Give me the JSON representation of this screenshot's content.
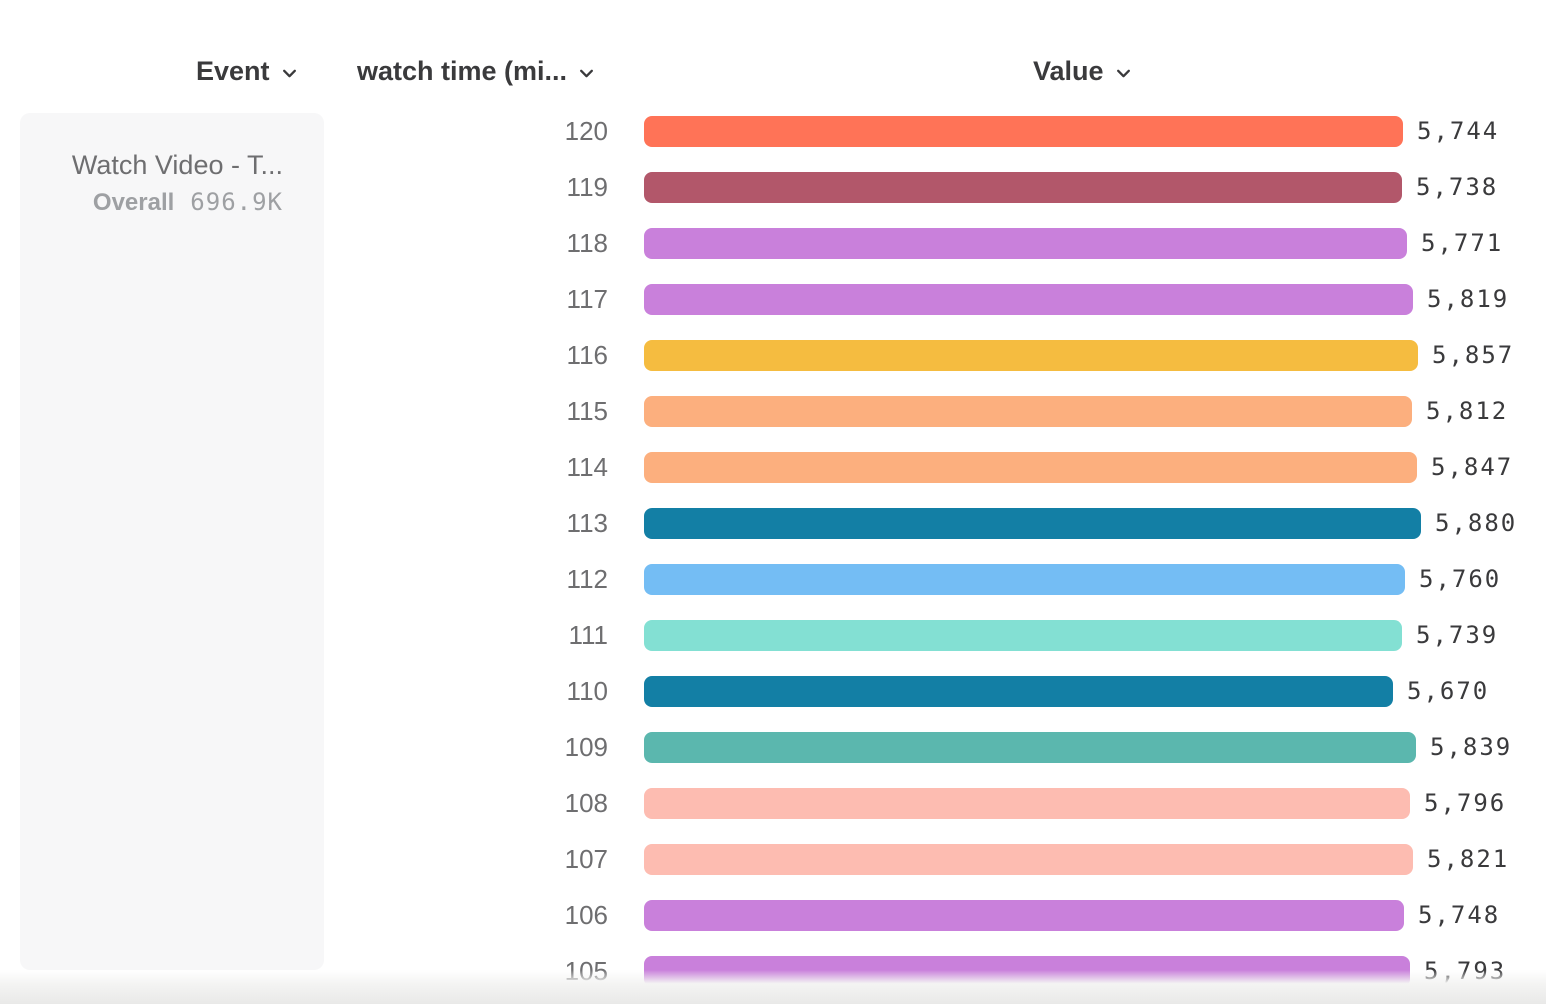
{
  "header": {
    "columns": [
      {
        "label": "Event"
      },
      {
        "label": "watch time (mi..."
      },
      {
        "label": "Value"
      }
    ]
  },
  "legend": {
    "event_name": "Watch Video - T...",
    "overall_label": "Overall",
    "overall_value": "696.9K"
  },
  "chart_data": {
    "type": "bar",
    "orientation": "horizontal",
    "title": "",
    "xlabel": "Value",
    "ylabel": "watch time (mi...",
    "xlim": [
      0,
      5880
    ],
    "categories": [
      "120",
      "119",
      "118",
      "117",
      "116",
      "115",
      "114",
      "113",
      "112",
      "111",
      "110",
      "109",
      "108",
      "107",
      "106",
      "105"
    ],
    "values": [
      5744,
      5738,
      5771,
      5819,
      5857,
      5812,
      5847,
      5880,
      5760,
      5739,
      5670,
      5839,
      5796,
      5821,
      5748,
      5793
    ],
    "value_labels": [
      "5,744",
      "5,738",
      "5,771",
      "5,819",
      "5,857",
      "5,812",
      "5,847",
      "5,880",
      "5,760",
      "5,739",
      "5,670",
      "5,839",
      "5,796",
      "5,821",
      "5,748",
      "5,793"
    ],
    "colors": [
      "#ff7357",
      "#b2576a",
      "#c980db",
      "#c980db",
      "#f5bc40",
      "#fcaf7e",
      "#fcaf7e",
      "#137fa5",
      "#74bdf4",
      "#83e0d3",
      "#137fa5",
      "#5bb7ae",
      "#fdbcb1",
      "#fdbcb1",
      "#c980db",
      "#c980db"
    ],
    "legend_position": "left",
    "grid": false
  },
  "colors": {
    "header_text": "#3a3a3c",
    "row_label_text": "#6e6e70",
    "value_text": "#3a3a3c",
    "legend_card_bg": "#f7f7f8",
    "legend_title_text": "#6e6e70",
    "legend_sub_text": "#9ea0a3"
  }
}
